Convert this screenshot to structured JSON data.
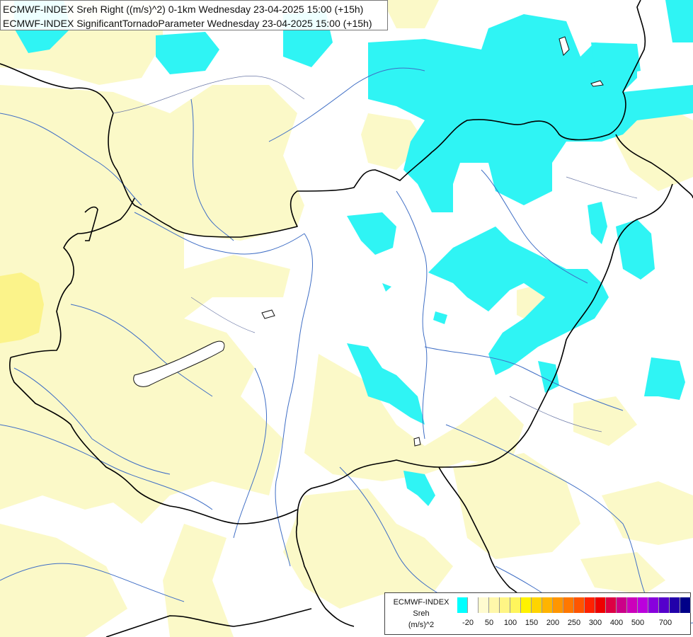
{
  "title": {
    "line1": "ECMWF-INDEX Sreh Right ((m/s)^2) 0-1km Wednesday 23-04-2025 15:00 (+15h)",
    "line2": "ECMWF-INDEX SignificantTornadoParameter Wednesday 23-04-2025 15:00 (+15h)"
  },
  "legend": {
    "source": "ECMWF-INDEX",
    "variable": "Sreh",
    "unit": "(m/s)^2",
    "colors": [
      "#00ffff",
      "#ffffff",
      "#fffbd0",
      "#fff7aa",
      "#fff585",
      "#fff55c",
      "#fff200",
      "#ffd400",
      "#ffb400",
      "#ff9600",
      "#ff7800",
      "#ff5500",
      "#ff2200",
      "#ee0000",
      "#dd0044",
      "#cc0088",
      "#cc00bb",
      "#bb00dd",
      "#8800dd",
      "#5500cc",
      "#2200aa",
      "#000088"
    ],
    "ticks": [
      "-20",
      "50",
      "100",
      "150",
      "200",
      "250",
      "300",
      "400",
      "500",
      "700"
    ]
  }
}
